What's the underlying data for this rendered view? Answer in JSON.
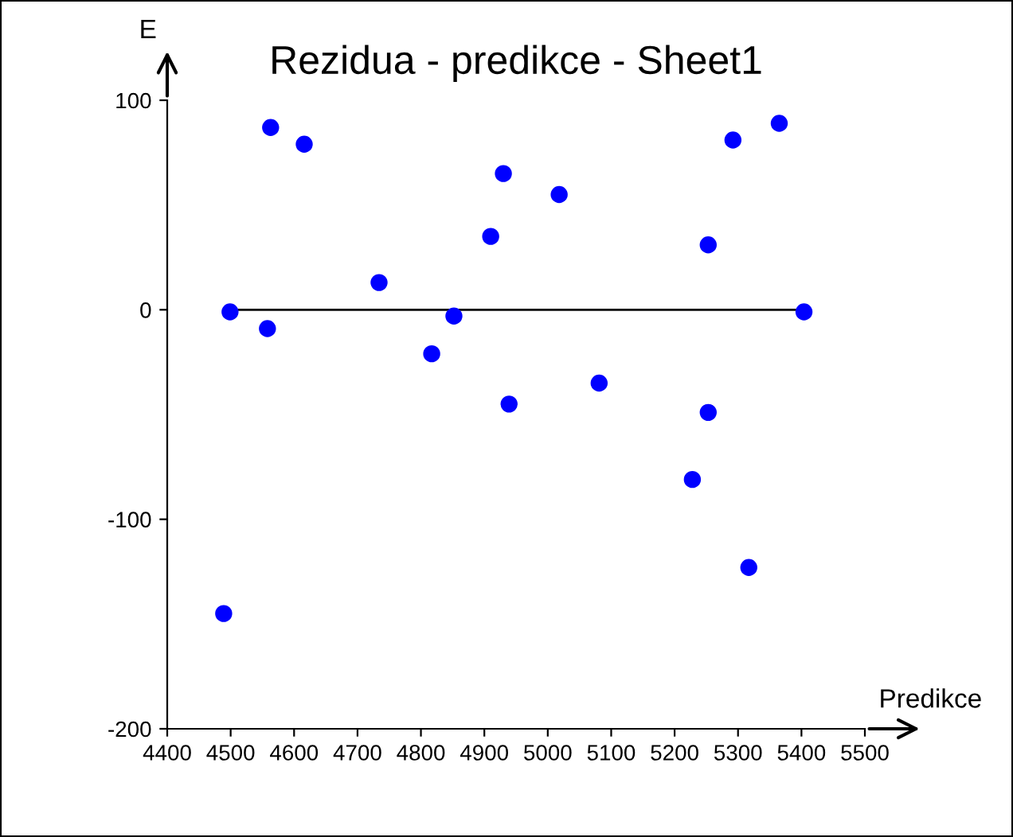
{
  "chart_data": {
    "type": "scatter",
    "title": "Rezidua - predikce - Sheet1",
    "xlabel": "Predikce",
    "ylabel": "E",
    "x": [
      4489,
      4499,
      4558,
      4563,
      4616,
      4734,
      4817,
      4852,
      4910,
      4930,
      4939,
      5018,
      5081,
      5228,
      5253,
      5253,
      5292,
      5317,
      5365,
      5404
    ],
    "series": [
      {
        "color": "#0000ff",
        "values": [
          -145,
          -1,
          -9,
          87,
          79,
          13,
          -21,
          -3,
          35,
          65,
          -45,
          55,
          -35,
          -81,
          31,
          -49,
          81,
          -123,
          89,
          -1
        ]
      }
    ],
    "ref_lines": [
      {
        "axis": "y",
        "value": 0,
        "color": "#000000",
        "line_style": "solid"
      }
    ],
    "xlim": [
      4400,
      5500
    ],
    "ylim": [
      -200,
      100
    ],
    "xticks": [
      4400,
      4500,
      4600,
      4700,
      4800,
      4900,
      5000,
      5100,
      5200,
      5300,
      5400,
      5500
    ],
    "yticks": [
      -200,
      -100,
      0,
      100
    ],
    "marker": "circle",
    "grid": false,
    "legend": false
  }
}
